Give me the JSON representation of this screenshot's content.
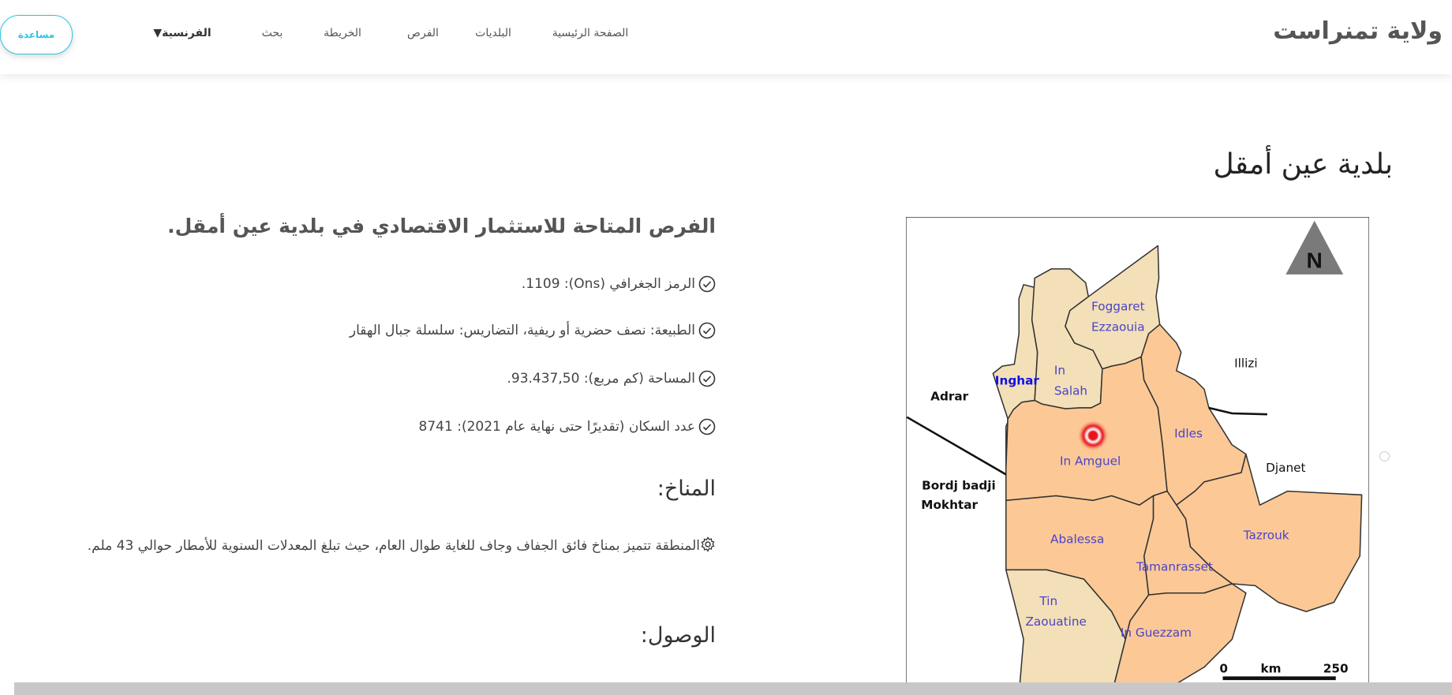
{
  "header": {
    "brand": "ولاية تمنراست",
    "nav": [
      "الصفحة الرئيسية",
      "البلديات",
      "الفرص",
      "الخريطة",
      "بحث",
      "الفرنسية▼"
    ],
    "help_label": "مساعدة",
    "accent_color": "#2bc4e0"
  },
  "page_title": "بلدية عين أمقل",
  "content": {
    "heading": "الفرص المتاحة للاستثمار الاقتصادي في بلدية عين أمقل.",
    "facts": [
      {
        "icon": "check-circle-icon",
        "text": "الرمز الجغرافي (Ons): 1109."
      },
      {
        "icon": "check-circle-icon",
        "text": "الطبيعة: نصف حضرية أو ريفية، التضاريس: سلسلة جبال الهقار"
      },
      {
        "icon": "check-circle-icon",
        "text": "المساحة (كم مربع): 93.437,50."
      },
      {
        "icon": "check-circle-icon",
        "text": "عدد السكان (تقديرًا حتى نهاية عام 2021): 8741"
      }
    ],
    "climate_heading": "المناخ:",
    "climate_text": "المنطقة تتميز بمناخ فائق الجفاف وجاف للغاية طوال العام، حيث تبلغ المعدلات السنوية للأمطار حوالي 43 ملم.",
    "climate_icon": "gear-icon",
    "access_heading": "الوصول:"
  },
  "map": {
    "north": "N",
    "scale_start": "0",
    "scale_unit": "km",
    "scale_end": "250",
    "communes": {
      "foggaret1": "Foggaret",
      "foggaret2": "Ezzaouia",
      "inghar": "Inghar",
      "insalah1": "In",
      "insalah2": "Salah",
      "inamguel": "In Amguel",
      "idles": "Idles",
      "abalessa": "Abalessa",
      "tamanrasset": "Tamanrasset",
      "tazrouk": "Tazrouk",
      "tin1": "Tin",
      "tin2": "Zaouatine",
      "inguezzam": "In Guezzam"
    },
    "neighbours": {
      "adrar": "Adrar",
      "bordj1": "Bordj badji",
      "bordj2": "Mokhtar",
      "illizi": "Illizi",
      "djanet": "Djanet"
    },
    "colors": {
      "selected_region": "#fcc996",
      "other_region": "#f3e0b8",
      "marker": "#e8141c",
      "label": "#4a44c8"
    }
  }
}
